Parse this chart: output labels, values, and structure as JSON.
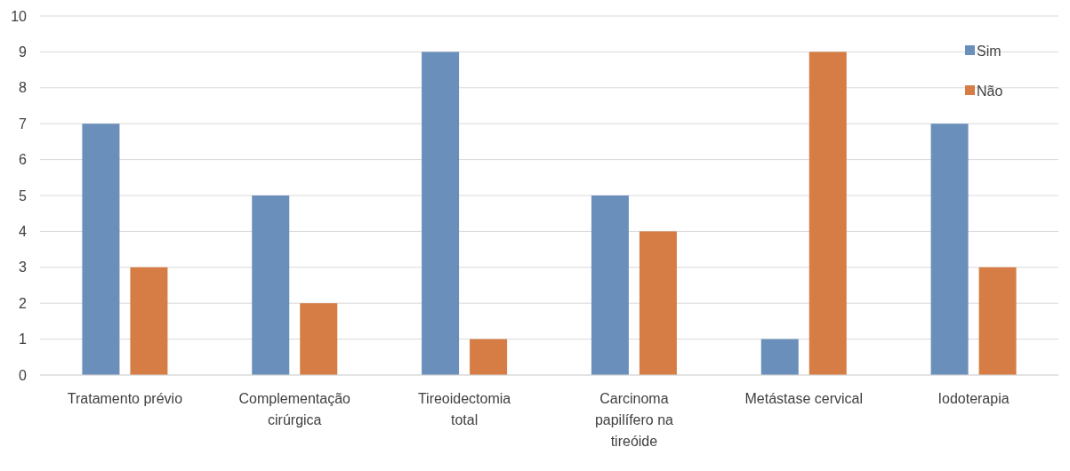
{
  "chart_data": {
    "type": "bar",
    "categories": [
      "Tratamento prévio",
      "Complementação cirúrgica",
      "Tireoidectomia total",
      "Carcinoma papilífero na tireóide",
      "Metástase cervical",
      "Iodoterapia"
    ],
    "series": [
      {
        "name": "Sim",
        "color": "#6a8fbb",
        "values": [
          7,
          5,
          9,
          5,
          1,
          7
        ]
      },
      {
        "name": "Não",
        "color": "#d57d45",
        "values": [
          3,
          2,
          1,
          4,
          9,
          3
        ]
      }
    ],
    "ylim": [
      0,
      10
    ],
    "yticks": [
      0,
      1,
      2,
      3,
      4,
      5,
      6,
      7,
      8,
      9,
      10
    ],
    "grid": "y",
    "legend": "top right"
  }
}
